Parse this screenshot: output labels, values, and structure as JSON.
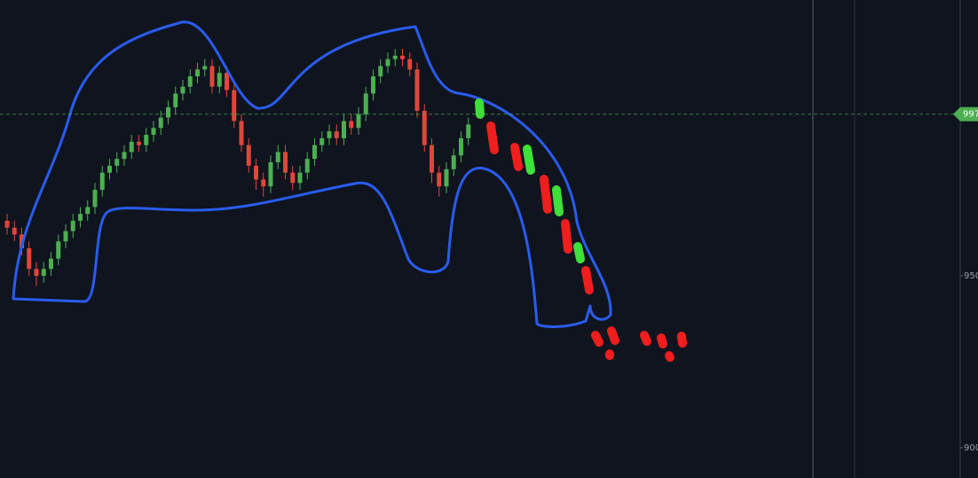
{
  "chart_data": {
    "type": "candlestick",
    "series": [
      {
        "up_color": "#4caf50",
        "down_color": "#e0463a",
        "open": [
          966,
          964,
          962,
          958,
          952,
          950,
          952,
          955,
          960,
          963,
          966,
          968,
          970,
          975,
          980,
          982,
          984,
          986,
          989,
          988,
          991,
          993,
          996,
          999,
          1003,
          1005,
          1008,
          1010,
          1011,
          1005,
          1009,
          1004,
          995,
          988,
          982,
          978,
          976,
          983,
          986,
          980,
          977,
          980,
          984,
          988,
          990,
          992,
          990,
          995,
          993,
          997,
          1003,
          1008,
          1011,
          1013,
          1014,
          1013,
          1010,
          998,
          988,
          980,
          976,
          981,
          985,
          990
        ],
        "high": [
          968,
          966,
          964,
          960,
          954,
          954,
          957,
          962,
          965,
          968,
          970,
          972,
          977,
          982,
          984,
          986,
          988,
          991,
          991,
          993,
          995,
          998,
          1001,
          1005,
          1007,
          1010,
          1012,
          1013,
          1013,
          1011,
          1011,
          1006,
          997,
          990,
          984,
          980,
          985,
          988,
          988,
          982,
          982,
          986,
          990,
          992,
          994,
          994,
          997,
          997,
          999,
          1005,
          1010,
          1013,
          1015,
          1016,
          1016,
          1015,
          1012,
          1000,
          990,
          982,
          983,
          987,
          992,
          996
        ],
        "low": [
          962,
          960,
          956,
          950,
          947,
          948,
          950,
          953,
          958,
          961,
          964,
          966,
          968,
          973,
          978,
          980,
          982,
          984,
          986,
          986,
          989,
          991,
          994,
          997,
          1001,
          1003,
          1006,
          1008,
          1003,
          1003,
          1002,
          993,
          986,
          980,
          975,
          973,
          974,
          981,
          978,
          975,
          975,
          978,
          982,
          986,
          988,
          988,
          988,
          991,
          991,
          995,
          1001,
          1006,
          1009,
          1011,
          1011,
          1008,
          996,
          986,
          977,
          973,
          974,
          979,
          983,
          988
        ],
        "close": [
          964,
          962,
          958,
          952,
          950,
          952,
          955,
          960,
          963,
          966,
          968,
          970,
          975,
          980,
          982,
          984,
          986,
          989,
          988,
          991,
          993,
          996,
          999,
          1003,
          1005,
          1008,
          1010,
          1011,
          1005,
          1009,
          1004,
          995,
          988,
          982,
          978,
          976,
          983,
          986,
          980,
          977,
          980,
          984,
          988,
          990,
          992,
          990,
          995,
          993,
          997,
          1003,
          1008,
          1011,
          1013,
          1014,
          1013,
          1010,
          998,
          988,
          980,
          976,
          981,
          985,
          990,
          994
        ]
      }
    ],
    "ylim": [
      891.2,
      1030.2
    ],
    "yticks": [
      950,
      900
    ],
    "price_line": 997,
    "price_line_color": "#4caf50"
  }
}
